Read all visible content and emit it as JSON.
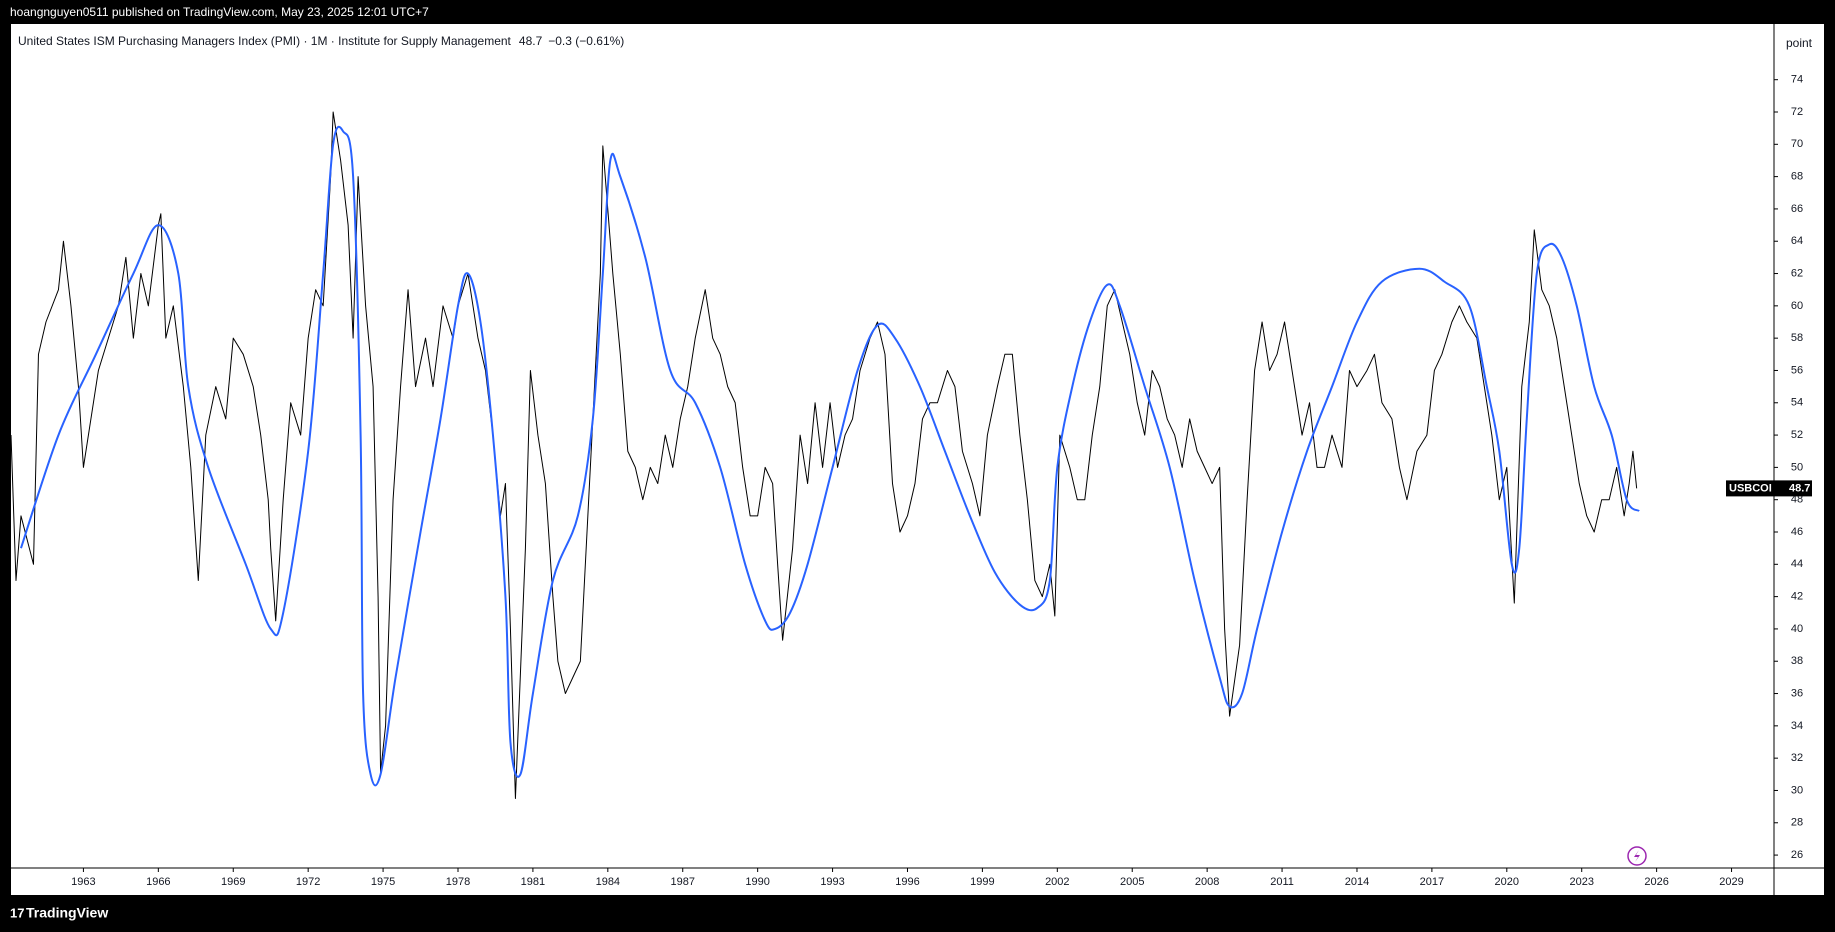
{
  "publisher": "hoangnguyen0511 published on TradingView.com, May 23, 2025 12:01 UTC+7",
  "brand": "TradingView",
  "chart_data": {
    "type": "line",
    "title": "United States ISM Purchasing Managers Index (PMI) · 1M · Institute for Supply Management",
    "last_value_label": "48.7",
    "change_label": "−0.3 (−0.61%)",
    "y_unit": "point",
    "xlim": [
      1960.1,
      2030.7
    ],
    "ylim": [
      25.2,
      77.2
    ],
    "xticks": [
      1963,
      1966,
      1969,
      1972,
      1975,
      1978,
      1981,
      1984,
      1987,
      1990,
      1993,
      1996,
      1999,
      2002,
      2005,
      2008,
      2011,
      2014,
      2017,
      2020,
      2023,
      2026,
      2029
    ],
    "yticks": [
      26,
      28,
      30,
      32,
      34,
      36,
      38,
      40,
      42,
      44,
      46,
      48,
      50,
      52,
      54,
      56,
      58,
      60,
      62,
      64,
      66,
      68,
      70,
      72,
      74
    ],
    "series": [
      {
        "name": "USBCOI",
        "color": "#000000",
        "x": [
          1960.1,
          1960.3,
          1960.5,
          1961.0,
          1961.2,
          1961.5,
          1962.0,
          1962.2,
          1962.5,
          1962.8,
          1963.0,
          1963.3,
          1963.6,
          1964.0,
          1964.4,
          1964.7,
          1965.0,
          1965.3,
          1965.6,
          1966.0,
          1966.1,
          1966.3,
          1966.6,
          1967.0,
          1967.3,
          1967.6,
          1967.9,
          1968.3,
          1968.7,
          1969.0,
          1969.4,
          1969.8,
          1970.1,
          1970.4,
          1970.5,
          1970.7,
          1971.0,
          1971.3,
          1971.7,
          1972.0,
          1972.3,
          1972.6,
          1972.9,
          1973.0,
          1973.3,
          1973.6,
          1973.8,
          1974.0,
          1974.3,
          1974.6,
          1974.8,
          1974.9,
          1975.1,
          1975.4,
          1975.7,
          1976.0,
          1976.3,
          1976.7,
          1977.0,
          1977.4,
          1977.8,
          1978.0,
          1978.4,
          1978.8,
          1979.1,
          1979.4,
          1979.7,
          1979.9,
          1980.1,
          1980.3,
          1980.7,
          1980.9,
          1981.2,
          1981.5,
          1981.8,
          1982.0,
          1982.3,
          1982.6,
          1982.9,
          1983.2,
          1983.5,
          1983.7,
          1983.8,
          1984.2,
          1984.5,
          1984.8,
          1985.1,
          1985.4,
          1985.7,
          1986.0,
          1986.3,
          1986.6,
          1986.9,
          1987.2,
          1987.5,
          1987.9,
          1988.2,
          1988.5,
          1988.8,
          1989.1,
          1989.4,
          1989.7,
          1990.0,
          1990.3,
          1990.6,
          1990.8,
          1991.0,
          1991.4,
          1991.7,
          1992.0,
          1992.3,
          1992.6,
          1992.9,
          1993.2,
          1993.5,
          1993.8,
          1994.1,
          1994.5,
          1994.8,
          1995.1,
          1995.4,
          1995.7,
          1996.0,
          1996.3,
          1996.6,
          1996.9,
          1997.2,
          1997.6,
          1997.9,
          1998.2,
          1998.6,
          1998.9,
          1999.2,
          1999.6,
          1999.9,
          2000.2,
          2000.5,
          2000.8,
          2001.1,
          2001.4,
          2001.7,
          2001.9,
          2002.1,
          2002.5,
          2002.8,
          2003.1,
          2003.4,
          2003.7,
          2004.0,
          2004.3,
          2004.6,
          2004.9,
          2005.2,
          2005.5,
          2005.8,
          2006.1,
          2006.4,
          2006.7,
          2007.0,
          2007.3,
          2007.6,
          2007.9,
          2008.2,
          2008.5,
          2008.7,
          2008.9,
          2009.3,
          2009.6,
          2009.9,
          2010.2,
          2010.5,
          2010.8,
          2011.1,
          2011.5,
          2011.8,
          2012.1,
          2012.4,
          2012.7,
          2013.0,
          2013.4,
          2013.7,
          2014.0,
          2014.4,
          2014.7,
          2015.0,
          2015.4,
          2015.7,
          2016.0,
          2016.4,
          2016.8,
          2017.1,
          2017.4,
          2017.8,
          2018.1,
          2018.4,
          2018.8,
          2019.1,
          2019.4,
          2019.7,
          2020.0,
          2020.3,
          2020.6,
          2020.9,
          2021.1,
          2021.4,
          2021.7,
          2022.0,
          2022.3,
          2022.6,
          2022.9,
          2023.2,
          2023.5,
          2023.8,
          2024.1,
          2024.4,
          2024.7,
          2024.9,
          2025.05,
          2025.2
        ],
        "values": [
          52,
          43,
          47,
          44,
          57,
          59,
          61,
          64,
          60,
          55,
          50,
          53,
          56,
          58,
          60,
          63,
          58,
          62,
          60,
          65,
          65.7,
          58,
          60,
          55,
          50,
          43,
          52,
          55,
          53,
          58,
          57,
          55,
          52,
          48,
          45,
          40.5,
          48,
          54,
          52,
          58,
          61,
          60,
          68,
          72,
          69,
          65,
          58,
          68,
          60,
          55,
          42,
          31.1,
          34,
          48,
          55,
          61,
          55,
          58,
          55,
          60,
          58,
          60,
          62,
          58,
          56,
          52,
          47,
          49,
          40,
          29.5,
          45,
          56,
          52,
          49,
          42,
          38,
          36,
          37,
          38,
          47,
          56,
          62,
          69.9,
          62,
          57,
          51,
          50,
          48,
          50,
          49,
          52,
          50,
          53,
          55,
          58,
          61,
          58,
          57,
          55,
          54,
          50,
          47,
          47,
          50,
          49,
          44,
          39.3,
          45,
          52,
          49,
          54,
          50,
          54,
          50,
          52,
          53,
          56,
          58,
          59,
          57,
          49,
          46,
          47,
          49,
          53,
          54,
          54,
          56,
          55,
          51,
          49,
          47,
          52,
          55,
          57,
          57,
          52,
          48,
          43,
          42,
          44,
          40.8,
          52,
          50,
          48,
          48,
          52,
          55,
          60,
          61,
          59,
          57,
          54,
          52,
          56,
          55,
          53,
          52,
          50,
          53,
          51,
          50,
          49,
          50,
          40,
          34.6,
          39,
          48,
          56,
          59,
          56,
          57,
          59,
          55,
          52,
          54,
          50,
          50,
          52,
          50,
          56,
          55,
          56,
          57,
          54,
          53,
          50,
          48,
          51,
          52,
          56,
          57,
          59,
          60,
          59,
          58,
          55,
          52,
          48,
          50,
          41.6,
          55,
          59,
          64.7,
          61,
          60,
          58,
          55,
          52,
          49,
          47,
          46,
          48,
          48,
          50,
          47,
          49,
          51,
          48.7
        ]
      },
      {
        "color": "#2962ff",
        "x": [
          1960.5,
          1962,
          1963.5,
          1965,
          1966,
          1966.8,
          1967.2,
          1968,
          1969.5,
          1970.5,
          1971,
          1972,
          1972.6,
          1973,
          1973.4,
          1973.8,
          1974.1,
          1974.2,
          1974.5,
          1974.9,
          1975.5,
          1976.5,
          1977.3,
          1978,
          1978.4,
          1978.9,
          1979.4,
          1979.9,
          1980.1,
          1980.5,
          1981,
          1981.8,
          1982.8,
          1983.4,
          1983.8,
          1984.1,
          1984.5,
          1985.5,
          1986.5,
          1987.5,
          1988.5,
          1989.5,
          1990.3,
          1990.7,
          1991.3,
          1992,
          1993,
          1994,
          1994.8,
          1995.5,
          1996.5,
          1997.5,
          1998.5,
          1999.5,
          2000.5,
          2001.2,
          2001.7,
          2002,
          2002.6,
          2003.3,
          2004,
          2004.5,
          2005.5,
          2006.5,
          2007.5,
          2008.5,
          2008.9,
          2009.4,
          2010,
          2011,
          2012,
          2013,
          2014,
          2015,
          2016.5,
          2017.5,
          2018.5,
          2019.2,
          2019.7,
          2020.2,
          2020.5,
          2020.8,
          2021.2,
          2021.7,
          2022.2,
          2022.8,
          2023.5,
          2024.2,
          2024.8,
          2025.3
        ],
        "values": [
          45,
          52,
          57,
          62,
          65,
          62,
          55,
          50,
          44,
          40,
          41,
          51,
          62,
          70,
          70.8,
          68,
          52,
          36,
          31,
          31,
          37,
          46,
          53,
          60,
          62,
          59,
          52,
          42,
          33,
          31,
          36,
          43,
          47,
          53,
          62,
          69,
          68,
          63,
          56,
          54,
          50,
          44,
          40.5,
          40,
          41,
          44,
          50,
          56,
          58.8,
          58,
          55,
          51,
          47,
          43.5,
          41.5,
          41.3,
          43,
          50,
          55,
          59,
          61.3,
          60,
          55,
          50,
          43,
          37,
          35.2,
          36,
          40,
          46,
          51,
          55,
          59,
          61.5,
          62.3,
          61.5,
          60,
          55,
          51,
          44,
          45,
          53,
          62,
          63.8,
          63,
          60,
          55,
          52,
          48,
          47.3
        ]
      }
    ]
  }
}
